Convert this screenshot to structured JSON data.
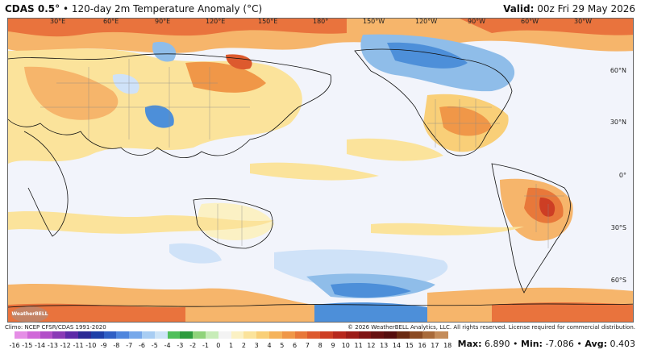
{
  "header": {
    "model": "CDAS 0.5°",
    "separator": "•",
    "product": "120-day 2m Temperature Anomaly (°C)",
    "valid_label": "Valid:",
    "valid_time": "00z Fri 29 May 2026"
  },
  "map": {
    "longitude_labels": [
      "30°E",
      "60°E",
      "90°E",
      "120°E",
      "150°E",
      "180°",
      "150°W",
      "120°W",
      "90°W",
      "60°W",
      "30°W"
    ],
    "latitude_labels": [
      "60°N",
      "30°N",
      "0°",
      "30°S",
      "60°S"
    ],
    "colors": {
      "ocean_neutral": "#f2f4fb",
      "warm_light": "#fbe6a8",
      "warm_mid": "#f6b56b",
      "warm_strong": "#e9733d",
      "warm_hot": "#cf3f22",
      "cool_light": "#cfe2f8",
      "cool_mid": "#8fbde9",
      "cool_strong": "#4d8fd9"
    }
  },
  "footer": {
    "climo": "Climo: NCEP CFSR/CDAS 1991-2020",
    "copyright": "© 2026 WeatherBELL Analytics, LLC. All rights reserved. License required for commercial distribution.",
    "logo_text": "WeatherBELL"
  },
  "colorbar": {
    "ticks": [
      "-16",
      "-15",
      "-14",
      "-13",
      "-12",
      "-11",
      "-10",
      "-9",
      "-8",
      "-7",
      "-6",
      "-5",
      "-4",
      "-3",
      "-2",
      "-1",
      "0",
      "1",
      "2",
      "3",
      "4",
      "5",
      "6",
      "7",
      "8",
      "9",
      "10",
      "11",
      "12",
      "13",
      "14",
      "15",
      "16",
      "17",
      "18"
    ],
    "colors": [
      "#e58ee6",
      "#d068d8",
      "#b24fc8",
      "#8a3ab6",
      "#5d2aa8",
      "#2c2a94",
      "#1e3fa8",
      "#2f5fc4",
      "#4f86dd",
      "#77a8ea",
      "#a8cdf3",
      "#cde4f7",
      "#4fbf5a",
      "#2e9c3e",
      "#8fd37a",
      "#c7ecb8",
      "#f3f3f3",
      "#fbf1c4",
      "#fbe39b",
      "#f9cf78",
      "#f5b35c",
      "#f09748",
      "#e8783a",
      "#dd5a2e",
      "#cd3e24",
      "#b7281d",
      "#9c1c18",
      "#7f1414",
      "#671010",
      "#550d0d",
      "#6a2a12",
      "#8a4a22",
      "#a86a3a",
      "#c48c5a"
    ]
  },
  "stats": {
    "max_label": "Max:",
    "max_value": "6.890",
    "min_label": "Min:",
    "min_value": "-7.086",
    "avg_label": "Avg:",
    "avg_value": "0.403",
    "separator": "•"
  }
}
